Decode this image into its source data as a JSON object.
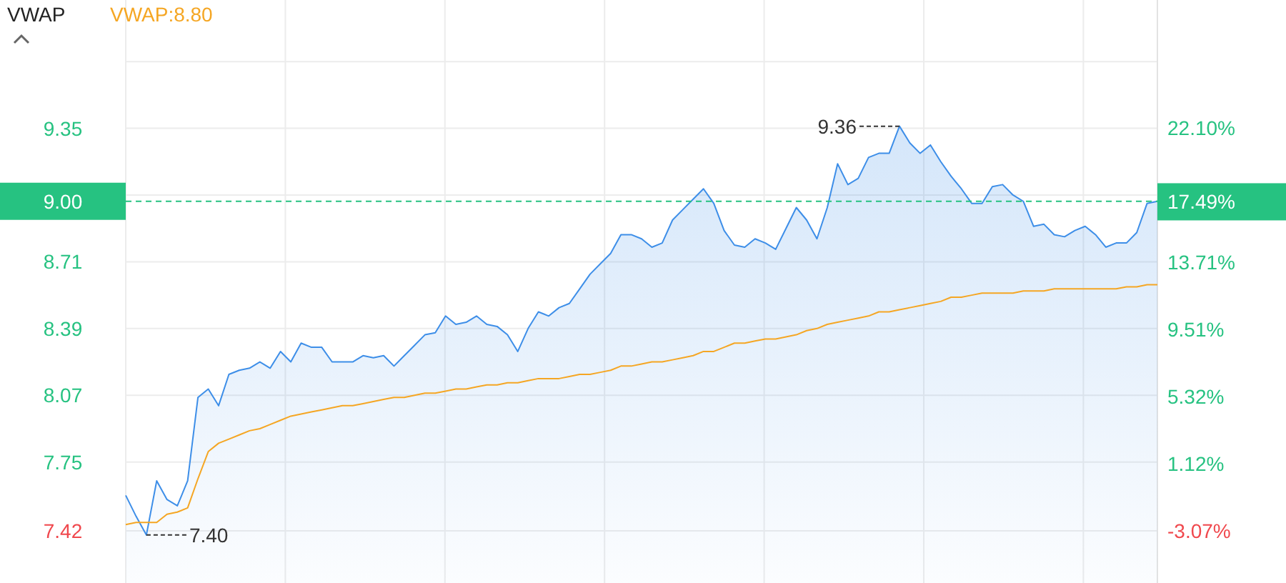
{
  "chart_data": {
    "type": "area",
    "title": "VWAP",
    "legend": "top left",
    "grid": true,
    "categories": [
      null,
      null,
      null,
      null,
      null,
      null,
      null,
      null,
      null,
      null,
      null,
      null,
      null,
      null,
      null,
      null,
      null,
      null,
      null,
      null,
      null,
      null,
      null,
      null,
      null,
      null,
      null,
      null,
      null,
      null,
      null,
      null,
      null,
      null,
      null,
      null,
      null,
      null,
      null,
      null,
      null,
      null,
      null,
      null,
      null,
      null,
      null,
      null,
      null,
      null,
      null,
      null,
      null,
      null,
      null,
      null,
      null,
      null,
      null,
      null,
      null,
      null,
      null,
      null,
      null,
      null,
      null,
      null,
      null,
      null,
      null,
      null,
      null,
      null,
      null,
      null,
      null,
      null,
      null,
      null,
      null,
      null,
      null,
      null,
      null,
      null,
      null,
      null,
      null,
      null,
      null,
      null,
      null,
      null,
      null,
      null,
      null,
      null,
      null,
      null,
      null
    ],
    "series": [
      {
        "color": "#3d8ee8",
        "values": [
          7.59,
          7.49,
          7.4,
          7.66,
          7.57,
          7.54,
          7.66,
          8.06,
          8.1,
          8.02,
          8.17,
          8.19,
          8.2,
          8.23,
          8.2,
          8.28,
          8.23,
          8.32,
          8.3,
          8.3,
          8.23,
          8.23,
          8.23,
          8.26,
          8.25,
          8.26,
          8.21,
          8.26,
          8.31,
          8.36,
          8.37,
          8.45,
          8.41,
          8.42,
          8.45,
          8.41,
          8.4,
          8.36,
          8.28,
          8.39,
          8.47,
          8.45,
          8.49,
          8.51,
          8.58,
          8.65,
          8.7,
          8.75,
          8.84,
          8.84,
          8.82,
          8.78,
          8.8,
          8.91,
          8.96,
          9.01,
          9.06,
          8.99,
          8.86,
          8.79,
          8.78,
          8.82,
          8.8,
          8.77,
          8.87,
          8.97,
          8.91,
          8.82,
          8.97,
          9.18,
          9.08,
          9.11,
          9.21,
          9.23,
          9.23,
          9.36,
          9.28,
          9.23,
          9.27,
          9.19,
          9.12,
          9.06,
          8.99,
          8.99,
          9.07,
          9.08,
          9.03,
          9.0,
          8.88,
          8.89,
          8.84,
          8.83,
          8.86,
          8.88,
          8.84,
          8.78,
          8.8,
          8.8,
          8.85,
          8.99,
          9.0
        ]
      },
      {
        "type": "line",
        "name": "VWAP:8.80",
        "color": "#f5a623",
        "values": [
          7.45,
          7.46,
          7.46,
          7.46,
          7.5,
          7.51,
          7.53,
          7.67,
          7.8,
          7.84,
          7.86,
          7.88,
          7.9,
          7.91,
          7.93,
          7.95,
          7.97,
          7.98,
          7.99,
          8.0,
          8.01,
          8.02,
          8.02,
          8.03,
          8.04,
          8.05,
          8.06,
          8.06,
          8.07,
          8.08,
          8.08,
          8.09,
          8.1,
          8.1,
          8.11,
          8.12,
          8.12,
          8.13,
          8.13,
          8.14,
          8.15,
          8.15,
          8.15,
          8.16,
          8.17,
          8.17,
          8.18,
          8.19,
          8.21,
          8.21,
          8.22,
          8.23,
          8.23,
          8.24,
          8.25,
          8.26,
          8.28,
          8.28,
          8.3,
          8.32,
          8.32,
          8.33,
          8.34,
          8.34,
          8.35,
          8.36,
          8.38,
          8.39,
          8.41,
          8.42,
          8.43,
          8.44,
          8.45,
          8.47,
          8.47,
          8.48,
          8.49,
          8.5,
          8.51,
          8.52,
          8.54,
          8.54,
          8.55,
          8.56,
          8.56,
          8.56,
          8.56,
          8.57,
          8.57,
          8.57,
          8.58,
          8.58,
          8.58,
          8.58,
          8.58,
          8.58,
          8.58,
          8.59,
          8.59,
          8.6,
          8.6
        ]
      }
    ],
    "ylim": [
      7.17,
      9.965
    ],
    "yticks": [
      {
        "value": 9.67,
        "label": null
      },
      9.35,
      {
        "value": 9.03,
        "label": null
      },
      8.71,
      8.39,
      8.07,
      7.75,
      7.42
    ],
    "y2lim": [
      -6.33,
      30.1
    ],
    "y2ticks": [
      {
        "value": 22.1,
        "label": "22.10%"
      },
      {
        "value": 17.49,
        "label": "17.49%"
      },
      {
        "value": 13.71,
        "label": "13.71%"
      },
      {
        "value": 9.51,
        "label": "9.51%"
      },
      {
        "value": 5.32,
        "label": "5.32%"
      },
      {
        "value": 1.12,
        "label": "1.12%"
      },
      {
        "value": -3.07,
        "label": "-3.07%"
      }
    ],
    "ref_lines": [
      {
        "axis": "y",
        "value": 9.0,
        "label": "9.00",
        "color": "#26c281",
        "line_style": "dashed"
      }
    ],
    "annotations": [
      "9.36",
      "7.40"
    ]
  }
}
